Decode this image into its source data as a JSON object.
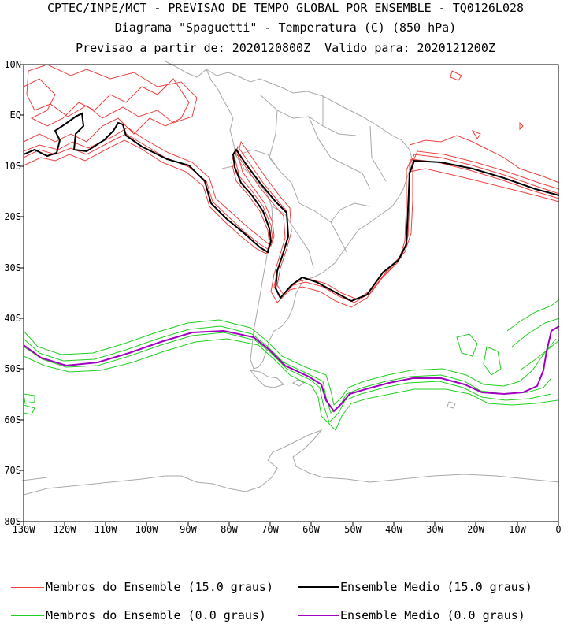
{
  "header": {
    "line1": "CPTEC/INPE/MCT - PREVISAO DE TEMPO GLOBAL POR ENSEMBLE - TQ0126L028",
    "line2": "Diagrama \"Spaguetti\" - Temperatura (C) (850 hPa)",
    "line3": "Previsao a partir de: 2020120800Z  Valido para: 2020121200Z"
  },
  "axes": {
    "lat_labels": [
      "10N",
      "EQ",
      "10S",
      "20S",
      "30S",
      "40S",
      "50S",
      "60S",
      "70S",
      "80S"
    ],
    "lon_labels": [
      "130W",
      "120W",
      "110W",
      "100W",
      "90W",
      "80W",
      "70W",
      "60W",
      "50W",
      "40W",
      "30W",
      "20W",
      "10W",
      "0"
    ]
  },
  "legend": [
    {
      "label": "Membros do Ensemble (15.0 graus)",
      "color": "#f04040"
    },
    {
      "label": "Ensemble Medio (15.0 graus)",
      "color": "#000000"
    },
    {
      "label": "Membros do Ensemble (0.0 graus)",
      "color": "#20d020"
    },
    {
      "label": "Ensemble Medio (0.0 graus)",
      "color": "#a000c0"
    }
  ],
  "colors": {
    "coast": "#a8a8a8",
    "member15": "#f04040",
    "mean15": "#000000",
    "member0": "#20d020",
    "mean0": "#a000c0"
  }
}
